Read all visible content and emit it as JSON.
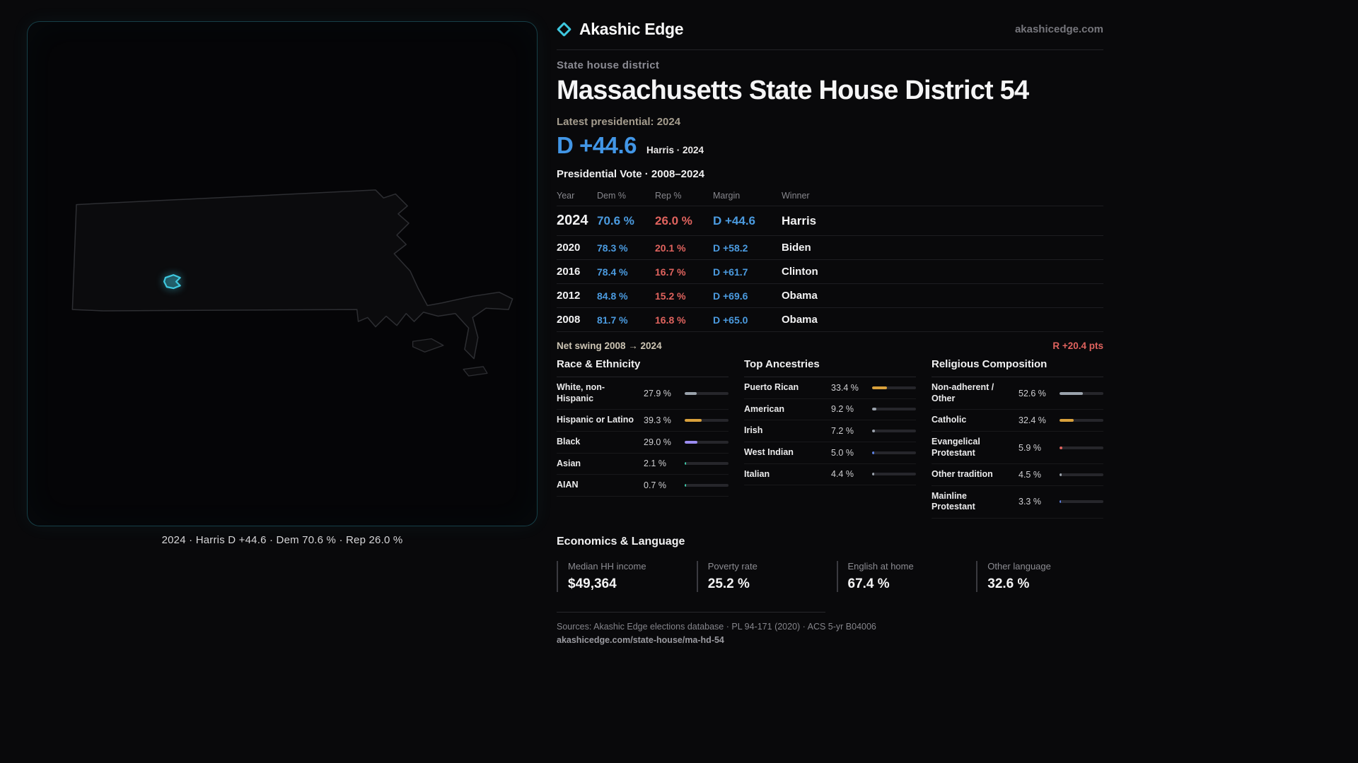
{
  "brand": {
    "name": "Akashic Edge",
    "domain": "akashicedge.com",
    "accent": "#3ec7de"
  },
  "page": {
    "kicker": "State house district",
    "title": "Massachusetts State House District 54",
    "latest_label": "Latest presidential: 2024",
    "headline_margin": "D +44.6",
    "headline_sub": "Harris · 2024"
  },
  "map": {
    "caption": "2024 · Harris D +44.6 · Dem 70.6 % · Rep 26.0 %"
  },
  "colors": {
    "dem_blue": "#4b9be0",
    "rep_red": "#e0635e"
  },
  "vote_table": {
    "title": "Presidential Vote · 2008–2024",
    "columns": {
      "year": "Year",
      "dem": "Dem %",
      "rep": "Rep %",
      "margin": "Margin",
      "winner": "Winner"
    },
    "rows": [
      {
        "year": "2024",
        "dem": "70.6 %",
        "rep": "26.0 %",
        "margin": "D +44.6",
        "winner": "Harris"
      },
      {
        "year": "2020",
        "dem": "78.3 %",
        "rep": "20.1 %",
        "margin": "D +58.2",
        "winner": "Biden"
      },
      {
        "year": "2016",
        "dem": "78.4 %",
        "rep": "16.7 %",
        "margin": "D +61.7",
        "winner": "Clinton"
      },
      {
        "year": "2012",
        "dem": "84.8 %",
        "rep": "15.2 %",
        "margin": "D +69.6",
        "winner": "Obama"
      },
      {
        "year": "2008",
        "dem": "81.7 %",
        "rep": "16.8 %",
        "margin": "D +65.0",
        "winner": "Obama"
      }
    ]
  },
  "swing": {
    "label": "Net swing 2008 → 2024",
    "value": "R +20.4 pts"
  },
  "demographics": [
    {
      "title": "Race & Ethnicity",
      "rows": [
        {
          "label": "White, non-Hispanic",
          "value": "27.9 %",
          "pct": 27.9,
          "color": "#9aa2ac"
        },
        {
          "label": "Hispanic or Latino",
          "value": "39.3 %",
          "pct": 39.3,
          "color": "#d9a13c"
        },
        {
          "label": "Black",
          "value": "29.0 %",
          "pct": 29.0,
          "color": "#9b8cf0"
        },
        {
          "label": "Asian",
          "value": "2.1 %",
          "pct": 2.1,
          "color": "#3fc9a9"
        },
        {
          "label": "AIAN",
          "value": "0.7 %",
          "pct": 0.7,
          "color": "#3fc9a9"
        }
      ]
    },
    {
      "title": "Top Ancestries",
      "rows": [
        {
          "label": "Puerto Rican",
          "value": "33.4 %",
          "pct": 33.4,
          "color": "#d9a13c"
        },
        {
          "label": "American",
          "value": "9.2 %",
          "pct": 9.2,
          "color": "#9aa2ac"
        },
        {
          "label": "Irish",
          "value": "7.2 %",
          "pct": 7.2,
          "color": "#9aa2ac"
        },
        {
          "label": "West Indian",
          "value": "5.0 %",
          "pct": 5.0,
          "color": "#5b7fe0"
        },
        {
          "label": "Italian",
          "value": "4.4 %",
          "pct": 4.4,
          "color": "#9aa2ac"
        }
      ]
    },
    {
      "title": "Religious Composition",
      "rows": [
        {
          "label": "Non-adherent / Other",
          "value": "52.6 %",
          "pct": 52.6,
          "color": "#9aa2ac"
        },
        {
          "label": "Catholic",
          "value": "32.4 %",
          "pct": 32.4,
          "color": "#d9a13c"
        },
        {
          "label": "Evangelical Protestant",
          "value": "5.9 %",
          "pct": 5.9,
          "color": "#e0635e"
        },
        {
          "label": "Other tradition",
          "value": "4.5 %",
          "pct": 4.5,
          "color": "#9aa2ac"
        },
        {
          "label": "Mainline Protestant",
          "value": "3.3 %",
          "pct": 3.3,
          "color": "#5b7fe0"
        }
      ]
    }
  ],
  "economics": {
    "title": "Economics & Language",
    "stats": [
      {
        "label": "Median HH income",
        "value": "$49,364"
      },
      {
        "label": "Poverty rate",
        "value": "25.2 %"
      },
      {
        "label": "English at home",
        "value": "67.4 %"
      },
      {
        "label": "Other language",
        "value": "32.6 %"
      }
    ]
  },
  "footer": {
    "sources": "Sources: Akashic Edge elections database · PL 94-171 (2020) · ACS 5-yr B04006",
    "permalink": "akashicedge.com/state-house/ma-hd-54"
  }
}
